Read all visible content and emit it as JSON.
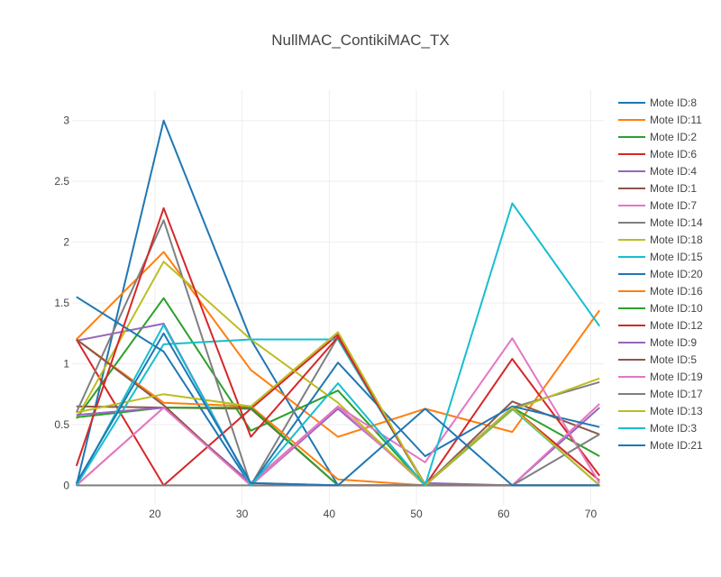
{
  "chart_data": {
    "type": "line",
    "title": "NullMAC_ContikiMAC_TX",
    "xlabel": "",
    "ylabel": "",
    "xlim": [
      10.5,
      71.5
    ],
    "ylim": [
      -0.16,
      3.25
    ],
    "grid": true,
    "legend_position": "right",
    "x": [
      11,
      21,
      31,
      41,
      51,
      61,
      71
    ],
    "x_tick_values": [
      20,
      30,
      40,
      50,
      60,
      70
    ],
    "x_tick_labels": [
      "20",
      "30",
      "40",
      "50",
      "60",
      "70"
    ],
    "y_tick_values": [
      0,
      0.5,
      1,
      1.5,
      2,
      2.5,
      3
    ],
    "y_tick_labels": [
      "0",
      "0.5",
      "1",
      "1.5",
      "2",
      "2.5",
      "3"
    ],
    "series": [
      {
        "name": "Mote ID:8",
        "color": "#1f77b4",
        "values": [
          0,
          3.0,
          1.2,
          0,
          0,
          0,
          0
        ]
      },
      {
        "name": "Mote ID:11",
        "color": "#ff7f0e",
        "values": [
          1.2,
          1.92,
          0.95,
          0.4,
          0.63,
          0.44,
          1.44
        ]
      },
      {
        "name": "Mote ID:2",
        "color": "#2ca02c",
        "values": [
          0.55,
          1.54,
          0.45,
          0.78,
          0,
          0.64,
          0.24
        ]
      },
      {
        "name": "Mote ID:6",
        "color": "#d62728",
        "values": [
          1.2,
          0,
          0.63,
          1.24,
          0,
          1.04,
          0.08
        ]
      },
      {
        "name": "Mote ID:4",
        "color": "#9467bd",
        "values": [
          1.19,
          1.33,
          0,
          0.63,
          0.02,
          0,
          0.64
        ]
      },
      {
        "name": "Mote ID:1",
        "color": "#8c564b",
        "values": [
          0.65,
          0.64,
          0.63,
          0,
          0,
          0.69,
          0.42
        ]
      },
      {
        "name": "Mote ID:7",
        "color": "#e377c2",
        "values": [
          0,
          0.64,
          0.02,
          0.65,
          0,
          0,
          0.67
        ]
      },
      {
        "name": "Mote ID:14",
        "color": "#7f7f7f",
        "values": [
          0.6,
          2.18,
          0,
          1.22,
          0.01,
          0.64,
          0.85
        ]
      },
      {
        "name": "Mote ID:18",
        "color": "#bcbd22",
        "values": [
          0.55,
          1.84,
          1.2,
          0.68,
          0,
          0.62,
          0.88
        ]
      },
      {
        "name": "Mote ID:15",
        "color": "#17becf",
        "values": [
          0,
          1.16,
          1.2,
          1.2,
          0,
          0.63,
          0
        ]
      },
      {
        "name": "Mote ID:20",
        "color": "#1f77b4",
        "values": [
          1.55,
          1.1,
          0,
          1.01,
          0.24,
          0.65,
          0.48
        ]
      },
      {
        "name": "Mote ID:16",
        "color": "#ff7f0e",
        "values": [
          1.2,
          0.68,
          0.65,
          0.05,
          0,
          0,
          0
        ]
      },
      {
        "name": "Mote ID:10",
        "color": "#2ca02c",
        "values": [
          0.56,
          0.64,
          0.64,
          0,
          0,
          0,
          0
        ]
      },
      {
        "name": "Mote ID:12",
        "color": "#d62728",
        "values": [
          0.16,
          2.28,
          0.4,
          1.22,
          0,
          0.64,
          0.04
        ]
      },
      {
        "name": "Mote ID:9",
        "color": "#9467bd",
        "values": [
          0.58,
          0.64,
          0.02,
          0,
          0,
          0,
          0
        ]
      },
      {
        "name": "Mote ID:5",
        "color": "#8c564b",
        "values": [
          1.2,
          0.66,
          0,
          0,
          0,
          0,
          0
        ]
      },
      {
        "name": "Mote ID:19",
        "color": "#e377c2",
        "values": [
          0,
          0.64,
          0,
          0.65,
          0.19,
          1.21,
          0.02
        ]
      },
      {
        "name": "Mote ID:17",
        "color": "#7f7f7f",
        "values": [
          0,
          0,
          0,
          0,
          0,
          0,
          0.42
        ]
      },
      {
        "name": "Mote ID:13",
        "color": "#bcbd22",
        "values": [
          0.6,
          0.75,
          0.65,
          1.26,
          0,
          0.64,
          0
        ]
      },
      {
        "name": "Mote ID:3",
        "color": "#17becf",
        "values": [
          0,
          1.32,
          0,
          0.84,
          0,
          2.32,
          1.31
        ]
      },
      {
        "name": "Mote ID:21",
        "color": "#1f77b4",
        "values": [
          0.02,
          1.25,
          0.02,
          0,
          0.63,
          0,
          0
        ]
      }
    ]
  }
}
